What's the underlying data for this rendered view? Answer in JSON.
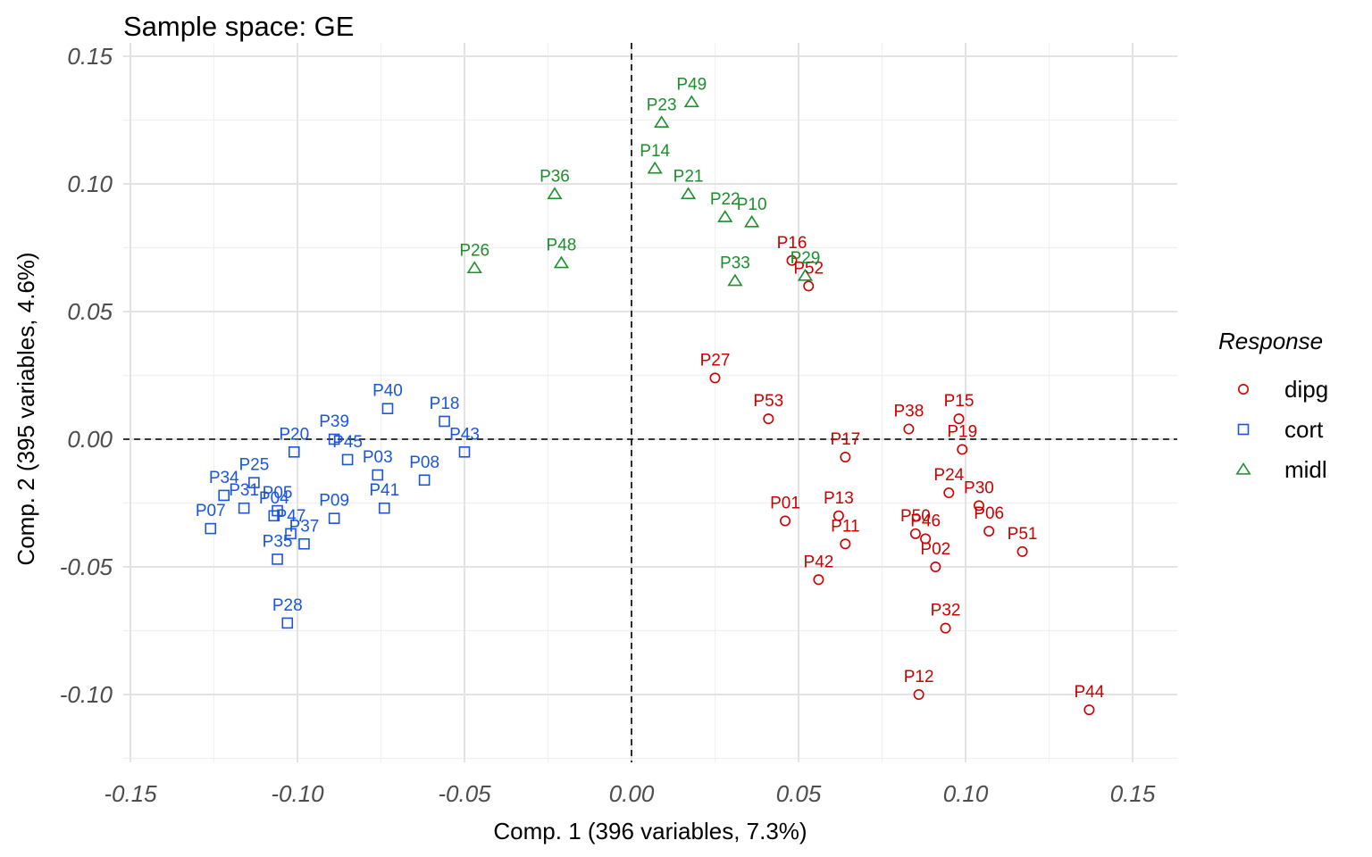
{
  "chart_data": {
    "type": "scatter",
    "title": "Sample space: GE",
    "xlabel": "Comp. 1 (396 variables, 7.3%)",
    "ylabel": "Comp. 2 (395 variables, 4.6%)",
    "xlim": [
      -0.152,
      0.163
    ],
    "ylim": [
      -0.125,
      0.155
    ],
    "x_ticks": [
      -0.15,
      -0.1,
      -0.05,
      0.0,
      0.05,
      0.1,
      0.15
    ],
    "x_tick_labels": [
      "-0.15",
      "-0.10",
      "-0.05",
      "0.00",
      "0.05",
      "0.10",
      "0.15"
    ],
    "y_ticks": [
      -0.1,
      -0.05,
      0.0,
      0.05,
      0.1,
      0.15
    ],
    "y_tick_labels": [
      "-0.10",
      "-0.05",
      "0.00",
      "0.05",
      "0.10",
      "0.15"
    ],
    "reference_lines": {
      "x": 0,
      "y": 0
    },
    "grid": true,
    "legend": {
      "title": "Response",
      "position": "right",
      "entries": [
        {
          "name": "dipg",
          "color": "#cc0000",
          "shape": "circle"
        },
        {
          "name": "cort",
          "color": "#1a56db",
          "shape": "square"
        },
        {
          "name": "midl",
          "color": "#1a8f2c",
          "shape": "triangle"
        }
      ]
    },
    "series": [
      {
        "name": "dipg",
        "points": [
          {
            "label": "P01",
            "x": 0.046,
            "y": -0.032
          },
          {
            "label": "P02",
            "x": 0.091,
            "y": -0.05
          },
          {
            "label": "P06",
            "x": 0.107,
            "y": -0.036
          },
          {
            "label": "P11",
            "x": 0.064,
            "y": -0.041
          },
          {
            "label": "P12",
            "x": 0.086,
            "y": -0.1
          },
          {
            "label": "P13",
            "x": 0.062,
            "y": -0.03
          },
          {
            "label": "P15",
            "x": 0.098,
            "y": 0.008
          },
          {
            "label": "P16",
            "x": 0.048,
            "y": 0.07
          },
          {
            "label": "P17",
            "x": 0.064,
            "y": -0.007
          },
          {
            "label": "P19",
            "x": 0.099,
            "y": -0.004
          },
          {
            "label": "P24",
            "x": 0.095,
            "y": -0.021
          },
          {
            "label": "P27",
            "x": 0.025,
            "y": 0.024
          },
          {
            "label": "P30",
            "x": 0.104,
            "y": -0.026
          },
          {
            "label": "P32",
            "x": 0.094,
            "y": -0.074
          },
          {
            "label": "P38",
            "x": 0.083,
            "y": 0.004
          },
          {
            "label": "P42",
            "x": 0.056,
            "y": -0.055
          },
          {
            "label": "P44",
            "x": 0.137,
            "y": -0.106
          },
          {
            "label": "P46",
            "x": 0.088,
            "y": -0.039
          },
          {
            "label": "P50",
            "x": 0.085,
            "y": -0.037
          },
          {
            "label": "P51",
            "x": 0.117,
            "y": -0.044
          },
          {
            "label": "P52",
            "x": 0.053,
            "y": 0.06
          },
          {
            "label": "P53",
            "x": 0.041,
            "y": 0.008
          }
        ]
      },
      {
        "name": "cort",
        "points": [
          {
            "label": "P03",
            "x": -0.076,
            "y": -0.014
          },
          {
            "label": "P04",
            "x": -0.107,
            "y": -0.03
          },
          {
            "label": "P05",
            "x": -0.106,
            "y": -0.028
          },
          {
            "label": "P07",
            "x": -0.126,
            "y": -0.035
          },
          {
            "label": "P08",
            "x": -0.062,
            "y": -0.016
          },
          {
            "label": "P09",
            "x": -0.089,
            "y": -0.031
          },
          {
            "label": "P18",
            "x": -0.056,
            "y": 0.007
          },
          {
            "label": "P20",
            "x": -0.101,
            "y": -0.005
          },
          {
            "label": "P25",
            "x": -0.113,
            "y": -0.017
          },
          {
            "label": "P28",
            "x": -0.103,
            "y": -0.072
          },
          {
            "label": "P31",
            "x": -0.116,
            "y": -0.027
          },
          {
            "label": "P34",
            "x": -0.122,
            "y": -0.022
          },
          {
            "label": "P35",
            "x": -0.106,
            "y": -0.047
          },
          {
            "label": "P37",
            "x": -0.098,
            "y": -0.041
          },
          {
            "label": "P39",
            "x": -0.089,
            "y": 0.0
          },
          {
            "label": "P40",
            "x": -0.073,
            "y": 0.012
          },
          {
            "label": "P41",
            "x": -0.074,
            "y": -0.027
          },
          {
            "label": "P43",
            "x": -0.05,
            "y": -0.005
          },
          {
            "label": "P45",
            "x": -0.085,
            "y": -0.008
          },
          {
            "label": "P47",
            "x": -0.102,
            "y": -0.037
          }
        ]
      },
      {
        "name": "midl",
        "points": [
          {
            "label": "P10",
            "x": 0.036,
            "y": 0.085
          },
          {
            "label": "P14",
            "x": 0.007,
            "y": 0.106
          },
          {
            "label": "P21",
            "x": 0.017,
            "y": 0.096
          },
          {
            "label": "P22",
            "x": 0.028,
            "y": 0.087
          },
          {
            "label": "P23",
            "x": 0.009,
            "y": 0.124
          },
          {
            "label": "P26",
            "x": -0.047,
            "y": 0.067
          },
          {
            "label": "P29",
            "x": 0.052,
            "y": 0.064
          },
          {
            "label": "P33",
            "x": 0.031,
            "y": 0.062
          },
          {
            "label": "P36",
            "x": -0.023,
            "y": 0.096
          },
          {
            "label": "P48",
            "x": -0.021,
            "y": 0.069
          },
          {
            "label": "P49",
            "x": 0.018,
            "y": 0.132
          }
        ]
      }
    ]
  }
}
